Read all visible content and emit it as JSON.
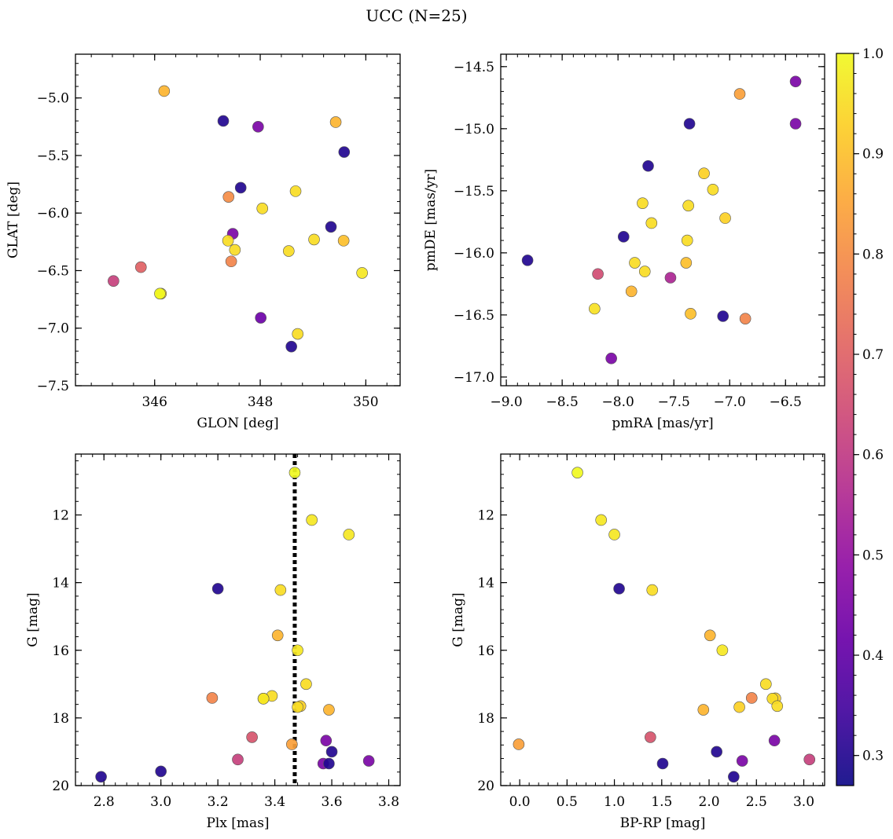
{
  "title": "UCC (N=25)",
  "colorbar": {
    "range": [
      0.27,
      1.0
    ],
    "ticks": [
      0.3,
      0.4,
      0.5,
      0.6,
      0.7,
      0.8,
      0.9,
      1.0
    ],
    "tick_labels": [
      "0.3",
      "0.4",
      "0.5",
      "0.6",
      "0.7",
      "0.8",
      "0.9",
      "1.0"
    ],
    "colormap": "plasma"
  },
  "chart_data": [
    {
      "type": "scatter",
      "id": "glon-glat",
      "xlabel": "GLON [deg]",
      "ylabel": "GLAT [deg]",
      "xlim": [
        344.5,
        350.65
      ],
      "ylim": [
        -7.5,
        -4.62
      ],
      "xticks": [
        346,
        348,
        350
      ],
      "xtick_labels": [
        "346",
        "348",
        "350"
      ],
      "yticks": [
        -7.5,
        -7.0,
        -6.5,
        -6.0,
        -5.5,
        -5.0
      ],
      "ytick_labels": [
        "−7.5",
        "−7.0",
        "−6.5",
        "−6.0",
        "−5.5",
        "−5.0"
      ],
      "y_inverted": false,
      "points": [
        {
          "x": 346.18,
          "y": -4.94,
          "c": 0.88
        },
        {
          "x": 347.3,
          "y": -5.2,
          "c": 0.3
        },
        {
          "x": 347.96,
          "y": -5.25,
          "c": 0.45
        },
        {
          "x": 349.43,
          "y": -5.21,
          "c": 0.88
        },
        {
          "x": 349.59,
          "y": -5.47,
          "c": 0.3
        },
        {
          "x": 347.63,
          "y": -5.78,
          "c": 0.3
        },
        {
          "x": 347.4,
          "y": -5.86,
          "c": 0.8
        },
        {
          "x": 348.67,
          "y": -5.81,
          "c": 0.95
        },
        {
          "x": 348.04,
          "y": -5.96,
          "c": 0.95
        },
        {
          "x": 349.34,
          "y": -6.12,
          "c": 0.3
        },
        {
          "x": 347.48,
          "y": -6.18,
          "c": 0.45
        },
        {
          "x": 347.39,
          "y": -6.24,
          "c": 0.95
        },
        {
          "x": 349.02,
          "y": -6.23,
          "c": 0.95
        },
        {
          "x": 349.58,
          "y": -6.24,
          "c": 0.9
        },
        {
          "x": 347.52,
          "y": -6.32,
          "c": 0.95
        },
        {
          "x": 348.54,
          "y": -6.33,
          "c": 0.95
        },
        {
          "x": 347.45,
          "y": -6.42,
          "c": 0.78
        },
        {
          "x": 345.74,
          "y": -6.47,
          "c": 0.7
        },
        {
          "x": 349.93,
          "y": -6.52,
          "c": 0.97
        },
        {
          "x": 345.22,
          "y": -6.59,
          "c": 0.62
        },
        {
          "x": 346.12,
          "y": -6.7,
          "c": 0.93
        },
        {
          "x": 348.01,
          "y": -6.91,
          "c": 0.42
        },
        {
          "x": 348.71,
          "y": -7.05,
          "c": 0.95
        },
        {
          "x": 348.59,
          "y": -7.16,
          "c": 0.3
        },
        {
          "x": 346.1,
          "y": -6.7,
          "c": 1.0
        }
      ]
    },
    {
      "type": "scatter",
      "id": "pmra-pmde",
      "xlabel": "pmRA [mas/yr]",
      "ylabel": "pmDE [mas/yr]",
      "xlim": [
        -9.05,
        -6.15
      ],
      "ylim": [
        -17.07,
        -14.4
      ],
      "xticks": [
        -9.0,
        -8.5,
        -8.0,
        -7.5,
        -7.0,
        -6.5
      ],
      "xtick_labels": [
        "−9.0",
        "−8.5",
        "−8.0",
        "−7.5",
        "−7.0",
        "−6.5"
      ],
      "yticks": [
        -17.0,
        -16.5,
        -16.0,
        -15.5,
        -15.0,
        -14.5
      ],
      "ytick_labels": [
        "−17.0",
        "−16.5",
        "−16.0",
        "−15.5",
        "−15.0",
        "−14.5"
      ],
      "y_inverted": false,
      "points": [
        {
          "x": -6.41,
          "y": -14.62,
          "c": 0.45
        },
        {
          "x": -6.91,
          "y": -14.72,
          "c": 0.84
        },
        {
          "x": -7.36,
          "y": -14.96,
          "c": 0.3
        },
        {
          "x": -6.41,
          "y": -14.96,
          "c": 0.45
        },
        {
          "x": -7.73,
          "y": -15.3,
          "c": 0.3
        },
        {
          "x": -7.23,
          "y": -15.36,
          "c": 0.93
        },
        {
          "x": -7.15,
          "y": -15.49,
          "c": 0.95
        },
        {
          "x": -7.78,
          "y": -15.6,
          "c": 0.95
        },
        {
          "x": -7.37,
          "y": -15.62,
          "c": 0.95
        },
        {
          "x": -7.04,
          "y": -15.72,
          "c": 0.93
        },
        {
          "x": -7.7,
          "y": -15.76,
          "c": 0.95
        },
        {
          "x": -7.95,
          "y": -15.87,
          "c": 0.3
        },
        {
          "x": -7.38,
          "y": -15.9,
          "c": 0.95
        },
        {
          "x": -8.81,
          "y": -16.06,
          "c": 0.3
        },
        {
          "x": -7.85,
          "y": -16.08,
          "c": 0.95
        },
        {
          "x": -7.39,
          "y": -16.08,
          "c": 0.9
        },
        {
          "x": -7.76,
          "y": -16.15,
          "c": 0.95
        },
        {
          "x": -8.18,
          "y": -16.17,
          "c": 0.65
        },
        {
          "x": -7.53,
          "y": -16.2,
          "c": 0.55
        },
        {
          "x": -7.88,
          "y": -16.31,
          "c": 0.88
        },
        {
          "x": -8.21,
          "y": -16.45,
          "c": 0.96
        },
        {
          "x": -7.35,
          "y": -16.49,
          "c": 0.9
        },
        {
          "x": -7.06,
          "y": -16.51,
          "c": 0.3
        },
        {
          "x": -6.86,
          "y": -16.53,
          "c": 0.78
        },
        {
          "x": -8.06,
          "y": -16.85,
          "c": 0.45
        }
      ]
    },
    {
      "type": "scatter",
      "id": "plx-g",
      "xlabel": "Plx [mas]",
      "ylabel": "G [mag]",
      "xlim": [
        2.7,
        3.84
      ],
      "ylim": [
        10.2,
        20.0
      ],
      "xticks": [
        2.8,
        3.0,
        3.2,
        3.4,
        3.6,
        3.8
      ],
      "xtick_labels": [
        "2.8",
        "3.0",
        "3.2",
        "3.4",
        "3.6",
        "3.8"
      ],
      "yticks": [
        12,
        14,
        16,
        18,
        20
      ],
      "ytick_labels": [
        "12",
        "14",
        "16",
        "18",
        "20"
      ],
      "y_inverted": true,
      "vline": 3.47,
      "points": [
        {
          "x": 3.47,
          "y": 10.75,
          "c": 1.0
        },
        {
          "x": 3.53,
          "y": 12.15,
          "c": 0.97
        },
        {
          "x": 3.66,
          "y": 12.58,
          "c": 0.97
        },
        {
          "x": 3.2,
          "y": 14.18,
          "c": 0.3
        },
        {
          "x": 3.42,
          "y": 14.22,
          "c": 0.95
        },
        {
          "x": 3.41,
          "y": 15.56,
          "c": 0.88
        },
        {
          "x": 3.48,
          "y": 16.0,
          "c": 0.97
        },
        {
          "x": 3.51,
          "y": 17.0,
          "c": 0.95
        },
        {
          "x": 3.39,
          "y": 17.35,
          "c": 0.95
        },
        {
          "x": 3.18,
          "y": 17.41,
          "c": 0.78
        },
        {
          "x": 3.36,
          "y": 17.43,
          "c": 0.93
        },
        {
          "x": 3.49,
          "y": 17.65,
          "c": 0.93
        },
        {
          "x": 3.48,
          "y": 17.68,
          "c": 0.95
        },
        {
          "x": 3.59,
          "y": 17.76,
          "c": 0.88
        },
        {
          "x": 3.32,
          "y": 18.57,
          "c": 0.67
        },
        {
          "x": 3.58,
          "y": 18.67,
          "c": 0.45
        },
        {
          "x": 3.46,
          "y": 18.78,
          "c": 0.84
        },
        {
          "x": 3.6,
          "y": 19.0,
          "c": 0.3
        },
        {
          "x": 3.27,
          "y": 19.23,
          "c": 0.62
        },
        {
          "x": 3.73,
          "y": 19.27,
          "c": 0.45
        },
        {
          "x": 3.57,
          "y": 19.35,
          "c": 0.45
        },
        {
          "x": 3.59,
          "y": 19.35,
          "c": 0.3
        },
        {
          "x": 3.0,
          "y": 19.58,
          "c": 0.3
        },
        {
          "x": 2.79,
          "y": 19.74,
          "c": 0.3
        },
        {
          "x": 3.36,
          "y": 17.43,
          "c": 0.97
        }
      ]
    },
    {
      "type": "scatter",
      "id": "bprp-g",
      "xlabel": "BP-RP [mag]",
      "ylabel": "G [mag]",
      "xlim": [
        -0.2,
        3.22
      ],
      "ylim": [
        10.2,
        20.0
      ],
      "xticks": [
        0.0,
        0.5,
        1.0,
        1.5,
        2.0,
        2.5,
        3.0
      ],
      "xtick_labels": [
        "0.0",
        "0.5",
        "1.0",
        "1.5",
        "2.0",
        "2.5",
        "3.0"
      ],
      "yticks": [
        12,
        14,
        16,
        18,
        20
      ],
      "ytick_labels": [
        "12",
        "14",
        "16",
        "18",
        "20"
      ],
      "y_inverted": true,
      "points": [
        {
          "x": 0.61,
          "y": 10.75,
          "c": 1.0
        },
        {
          "x": 0.86,
          "y": 12.15,
          "c": 0.97
        },
        {
          "x": 1.0,
          "y": 12.58,
          "c": 0.97
        },
        {
          "x": 1.05,
          "y": 14.18,
          "c": 0.3
        },
        {
          "x": 1.4,
          "y": 14.22,
          "c": 0.95
        },
        {
          "x": 2.01,
          "y": 15.56,
          "c": 0.88
        },
        {
          "x": 2.14,
          "y": 16.0,
          "c": 0.97
        },
        {
          "x": 2.6,
          "y": 17.0,
          "c": 0.95
        },
        {
          "x": 2.45,
          "y": 17.41,
          "c": 0.78
        },
        {
          "x": 2.7,
          "y": 17.42,
          "c": 0.93
        },
        {
          "x": 2.67,
          "y": 17.43,
          "c": 0.95
        },
        {
          "x": 2.32,
          "y": 17.68,
          "c": 0.93
        },
        {
          "x": 2.72,
          "y": 17.65,
          "c": 0.95
        },
        {
          "x": 1.94,
          "y": 17.76,
          "c": 0.88
        },
        {
          "x": 1.38,
          "y": 18.57,
          "c": 0.67
        },
        {
          "x": 2.69,
          "y": 18.67,
          "c": 0.45
        },
        {
          "x": -0.01,
          "y": 18.78,
          "c": 0.84
        },
        {
          "x": 2.08,
          "y": 19.0,
          "c": 0.3
        },
        {
          "x": 3.06,
          "y": 19.23,
          "c": 0.62
        },
        {
          "x": 2.35,
          "y": 19.27,
          "c": 0.45
        },
        {
          "x": 1.51,
          "y": 19.35,
          "c": 0.3
        },
        {
          "x": 2.26,
          "y": 19.74,
          "c": 0.3
        }
      ]
    }
  ]
}
